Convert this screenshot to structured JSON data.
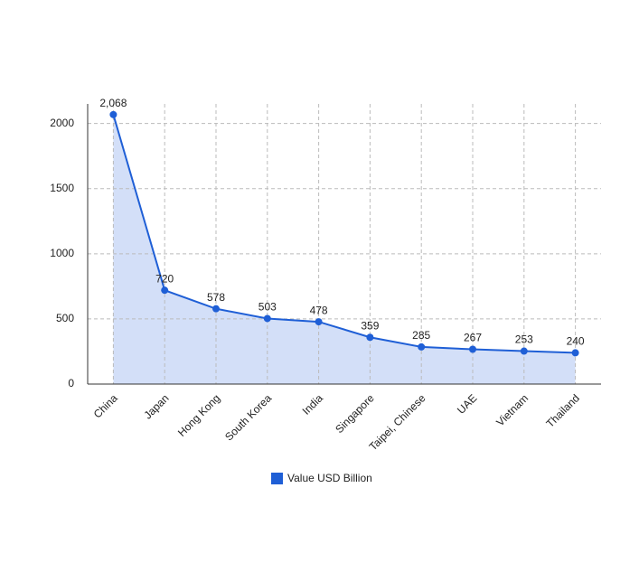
{
  "chart_data": {
    "type": "line",
    "categories": [
      "China",
      "Japan",
      "Hong Kong",
      "South Korea",
      "India",
      "Singapore",
      "Taipei, Chinese",
      "UAE",
      "Vietnam",
      "Thailand"
    ],
    "series": [
      {
        "name": "Value USD Billion",
        "color": "#1f5fd6",
        "values": [
          2068,
          720,
          578,
          503,
          478,
          359,
          285,
          267,
          253,
          240
        ],
        "value_labels": [
          "2,068",
          "720",
          "578",
          "503",
          "478",
          "359",
          "285",
          "267",
          "253",
          "240"
        ]
      }
    ],
    "ylim": [
      0,
      2150
    ],
    "yticks": [
      0,
      500,
      1000,
      1500,
      2000
    ],
    "grid": true,
    "area_fill": "#d3dff8",
    "legend": "bottom"
  }
}
